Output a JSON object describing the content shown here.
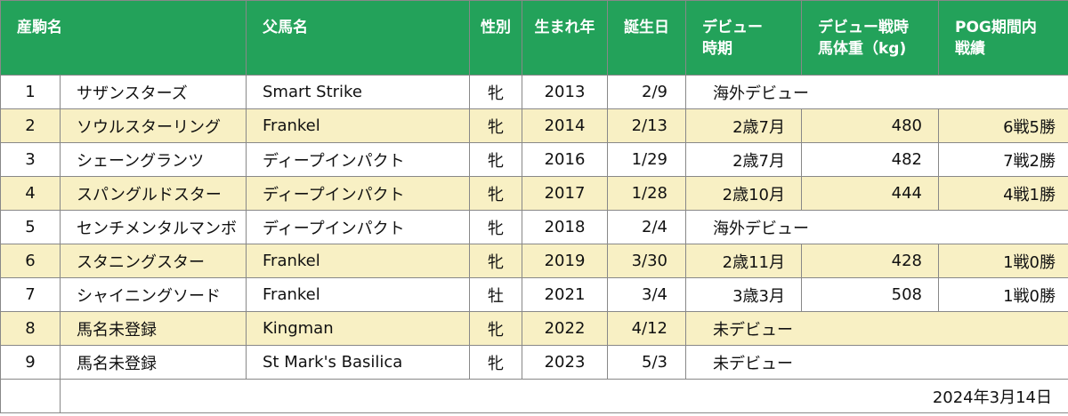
{
  "headers": [
    "産駒名",
    "父馬名",
    "性別",
    "生まれ年",
    "誕生日",
    "デビュー\n時期",
    "デビュー戦時\n馬体重（kg)",
    "POG期間内\n戦績"
  ],
  "rows": [
    {
      "no": "1",
      "name": "サザンスターズ",
      "sire": "Smart Strike",
      "sex": "牝",
      "year": "2013",
      "birthday": "2/9",
      "debut": "海外デビュー",
      "weight": "",
      "record": ""
    },
    {
      "no": "2",
      "name": "ソウルスターリング",
      "sire": "Frankel",
      "sex": "牝",
      "year": "2014",
      "birthday": "2/13",
      "debut": "2歳7月",
      "weight": "480",
      "record": "6戦5勝"
    },
    {
      "no": "3",
      "name": "シェーングランツ",
      "sire": "ディープインパクト",
      "sex": "牝",
      "year": "2016",
      "birthday": "1/29",
      "debut": "2歳7月",
      "weight": "482",
      "record": "7戦2勝"
    },
    {
      "no": "4",
      "name": "スパングルドスター",
      "sire": "ディープインパクト",
      "sex": "牝",
      "year": "2017",
      "birthday": "1/28",
      "debut": "2歳10月",
      "weight": "444",
      "record": "4戦1勝"
    },
    {
      "no": "5",
      "name": "センチメンタルマンボ",
      "sire": "ディープインパクト",
      "sex": "牝",
      "year": "2018",
      "birthday": "2/4",
      "debut": "海外デビュー",
      "weight": "",
      "record": ""
    },
    {
      "no": "6",
      "name": "スタニングスター",
      "sire": "Frankel",
      "sex": "牝",
      "year": "2019",
      "birthday": "3/30",
      "debut": "2歳11月",
      "weight": "428",
      "record": "1戦0勝"
    },
    {
      "no": "7",
      "name": "シャイニングソード",
      "sire": "Frankel",
      "sex": "牡",
      "year": "2021",
      "birthday": "3/4",
      "debut": "3歳3月",
      "weight": "508",
      "record": "1戦0勝"
    },
    {
      "no": "8",
      "name": "馬名未登録",
      "sire": "Kingman",
      "sex": "牝",
      "year": "2022",
      "birthday": "4/12",
      "debut": "未デビュー",
      "weight": "",
      "record": ""
    },
    {
      "no": "9",
      "name": "馬名未登録",
      "sire": "St Mark's Basilica",
      "sex": "牝",
      "year": "2023",
      "birthday": "5/3",
      "debut": "未デビュー",
      "weight": "",
      "record": ""
    }
  ],
  "footer": {
    "date": "2024年3月14日"
  },
  "colors": {
    "header_bg": "#23a25a",
    "stripe_bg": "#f8f0c4"
  }
}
